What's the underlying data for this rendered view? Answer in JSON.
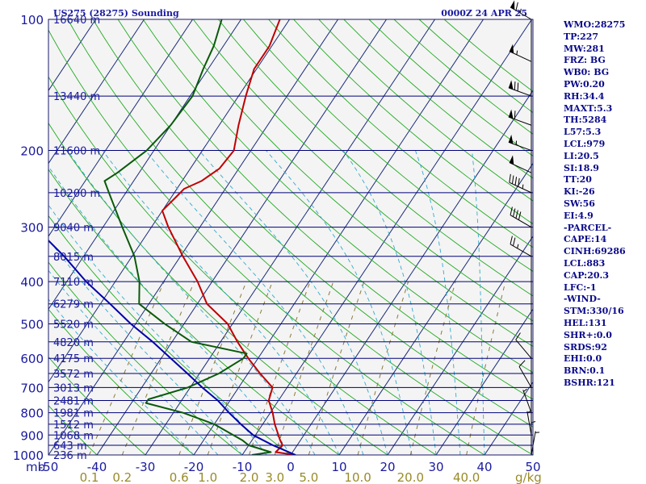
{
  "header": {
    "station_title": "US275 (28275) Sounding",
    "time_title": "0000Z 24 APR 25"
  },
  "chart_data": {
    "type": "skew-t log-p sounding",
    "pressure_axis": {
      "labels": [
        "100",
        "200",
        "300",
        "400",
        "500",
        "600",
        "700",
        "800",
        "900",
        "1000"
      ],
      "values": [
        100,
        200,
        300,
        400,
        500,
        600,
        700,
        800,
        900,
        1000
      ],
      "unit_label": "mb",
      "ylim": [
        1000,
        100
      ],
      "scale": "log"
    },
    "temperature_axis": {
      "labels": [
        "-50",
        "-40",
        "-30",
        "-20",
        "-10",
        "0",
        "10",
        "20",
        "30",
        "40",
        "50"
      ],
      "values": [
        -50,
        -40,
        -30,
        -20,
        -10,
        0,
        10,
        20,
        30,
        40,
        50
      ],
      "xlim": [
        -50,
        50
      ]
    },
    "mixing_ratio_axis": {
      "labels": [
        "0.1",
        "0.2",
        "0.6",
        "1.0",
        "2.0",
        "3.0",
        "5.0",
        "10.0",
        "20.0",
        "40.0"
      ],
      "values": [
        0.1,
        0.2,
        0.6,
        1.0,
        2.0,
        3.0,
        5.0,
        10.0,
        20.0,
        40.0
      ],
      "unit_label": "g/kg"
    },
    "height_levels": [
      {
        "p": 100,
        "label": "16640 m"
      },
      {
        "p": 150,
        "label": "13440 m"
      },
      {
        "p": 200,
        "label": "11600 m"
      },
      {
        "p": 250,
        "label": "10200 m"
      },
      {
        "p": 300,
        "label": "9040 m"
      },
      {
        "p": 350,
        "label": "8015 m"
      },
      {
        "p": 400,
        "label": "7110 m"
      },
      {
        "p": 450,
        "label": "6279 m"
      },
      {
        "p": 500,
        "label": "5520 m"
      },
      {
        "p": 550,
        "label": "4820 m"
      },
      {
        "p": 600,
        "label": "4175 m"
      },
      {
        "p": 650,
        "label": "3572 m"
      },
      {
        "p": 700,
        "label": "3013 m"
      },
      {
        "p": 750,
        "label": "2481 m"
      },
      {
        "p": 800,
        "label": "1981 m"
      },
      {
        "p": 850,
        "label": "1512 m"
      },
      {
        "p": 900,
        "label": "1068 m"
      },
      {
        "p": 950,
        "label": "643 m"
      },
      {
        "p": 1000,
        "label": "236 m"
      }
    ],
    "series": [
      {
        "key": "temperature",
        "color": "#c00000",
        "points": [
          {
            "p": 1000,
            "t": 1.0
          },
          {
            "p": 985,
            "t": -3.5
          },
          {
            "p": 950,
            "t": -3.0
          },
          {
            "p": 925,
            "t": -4.2
          },
          {
            "p": 850,
            "t": -7.5
          },
          {
            "p": 800,
            "t": -9.5
          },
          {
            "p": 750,
            "t": -12.0
          },
          {
            "p": 700,
            "t": -13.0
          },
          {
            "p": 650,
            "t": -17.5
          },
          {
            "p": 600,
            "t": -22.0
          },
          {
            "p": 550,
            "t": -26.5
          },
          {
            "p": 500,
            "t": -31.0
          },
          {
            "p": 450,
            "t": -38.0
          },
          {
            "p": 400,
            "t": -43.0
          },
          {
            "p": 350,
            "t": -49.5
          },
          {
            "p": 300,
            "t": -56.5
          },
          {
            "p": 275,
            "t": -60.0
          },
          {
            "p": 255,
            "t": -59.0
          },
          {
            "p": 245,
            "t": -58.5
          },
          {
            "p": 235,
            "t": -56.0
          },
          {
            "p": 220,
            "t": -54.0
          },
          {
            "p": 200,
            "t": -53.5
          },
          {
            "p": 175,
            "t": -56.0
          },
          {
            "p": 150,
            "t": -58.5
          },
          {
            "p": 130,
            "t": -60.5
          },
          {
            "p": 115,
            "t": -60.5
          },
          {
            "p": 100,
            "t": -62.0
          }
        ]
      },
      {
        "key": "dewpoint",
        "color": "#0a5a0a",
        "points": [
          {
            "p": 1000,
            "t": -8.0
          },
          {
            "p": 985,
            "t": -4.5
          },
          {
            "p": 950,
            "t": -10.0
          },
          {
            "p": 925,
            "t": -12.0
          },
          {
            "p": 850,
            "t": -20.0
          },
          {
            "p": 800,
            "t": -28.0
          },
          {
            "p": 760,
            "t": -37.0
          },
          {
            "p": 745,
            "t": -37.0
          },
          {
            "p": 700,
            "t": -30.5
          },
          {
            "p": 650,
            "t": -26.0
          },
          {
            "p": 600,
            "t": -23.0
          },
          {
            "p": 585,
            "t": -23.0
          },
          {
            "p": 550,
            "t": -36.0
          },
          {
            "p": 500,
            "t": -44.0
          },
          {
            "p": 450,
            "t": -52.0
          },
          {
            "p": 400,
            "t": -55.0
          },
          {
            "p": 350,
            "t": -59.5
          },
          {
            "p": 300,
            "t": -66.0
          },
          {
            "p": 250,
            "t": -73.5
          },
          {
            "p": 235,
            "t": -76.0
          },
          {
            "p": 225,
            "t": -74.5
          },
          {
            "p": 200,
            "t": -71.5
          },
          {
            "p": 175,
            "t": -70.0
          },
          {
            "p": 150,
            "t": -69.5
          },
          {
            "p": 130,
            "t": -71.0
          },
          {
            "p": 115,
            "t": -72.0
          },
          {
            "p": 100,
            "t": -74.0
          }
        ]
      },
      {
        "key": "parcel",
        "color": "#0000aa",
        "points": [
          {
            "p": 1000,
            "t": 1.0
          },
          {
            "p": 950,
            "t": -5.0
          },
          {
            "p": 900,
            "t": -10.5
          },
          {
            "p": 850,
            "t": -14.5
          },
          {
            "p": 800,
            "t": -18.5
          },
          {
            "p": 750,
            "t": -22.5
          },
          {
            "p": 700,
            "t": -27.5
          },
          {
            "p": 650,
            "t": -32.5
          },
          {
            "p": 600,
            "t": -38.0
          },
          {
            "p": 550,
            "t": -44.0
          },
          {
            "p": 500,
            "t": -51.0
          },
          {
            "p": 450,
            "t": -58.0
          },
          {
            "p": 400,
            "t": -66.0
          },
          {
            "p": 350,
            "t": -74.0
          },
          {
            "p": 300,
            "t": -84.0
          },
          {
            "p": 250,
            "t": -94.5
          },
          {
            "p": 200,
            "t": -105.0
          },
          {
            "p": 175,
            "t": -111.0
          },
          {
            "p": 150,
            "t": -118.0
          },
          {
            "p": 130,
            "t": -124.0
          },
          {
            "p": 115,
            "t": -129.5
          }
        ]
      }
    ],
    "colors": {
      "isobar": "#00007a",
      "isotherm": "#1a2a7a",
      "dry_adiabat": "#22aa22",
      "moist_adiabat": "#33aacc",
      "mixing_ratio": "#8a7a3a",
      "wind_barb": "#000000"
    }
  },
  "wind_barbs": [
    {
      "p": 100,
      "dir": 300,
      "spd": 65
    },
    {
      "p": 125,
      "dir": 295,
      "spd": 55
    },
    {
      "p": 150,
      "dir": 290,
      "spd": 70
    },
    {
      "p": 175,
      "dir": 290,
      "spd": 60
    },
    {
      "p": 200,
      "dir": 290,
      "spd": 55
    },
    {
      "p": 225,
      "dir": 295,
      "spd": 50
    },
    {
      "p": 250,
      "dir": 295,
      "spd": 45
    },
    {
      "p": 300,
      "dir": 300,
      "spd": 40
    },
    {
      "p": 350,
      "dir": 300,
      "spd": 25
    },
    {
      "p": 600,
      "dir": 320,
      "spd": 10
    },
    {
      "p": 700,
      "dir": 330,
      "spd": 10
    },
    {
      "p": 800,
      "dir": 340,
      "spd": 5
    },
    {
      "p": 900,
      "dir": 350,
      "spd": 5
    },
    {
      "p": 950,
      "dir": 0,
      "spd": 5
    },
    {
      "p": 1000,
      "dir": 10,
      "spd": 5
    }
  ],
  "indices": [
    "WMO:28275",
    "TP:227",
    "MW:281",
    "FRZ: BG",
    "WB0: BG",
    "PW:0.20",
    "RH:34.4",
    "MAXT:5.3",
    "TH:5284",
    "L57:5.3",
    "LCL:979",
    "LI:20.5",
    "SI:18.9",
    "TT:20",
    "KI:-26",
    "SW:56",
    "EI:4.9",
    "-PARCEL-",
    "CAPE:14",
    "CINH:69286",
    "LCL:883",
    "CAP:20.3",
    "LFC:-1",
    "-WIND-",
    "STM:330/16",
    "HEL:131",
    "SHR+:0.0",
    "SRDS:92",
    "EHI:0.0",
    "BRN:0.1",
    "BSHR:121"
  ]
}
